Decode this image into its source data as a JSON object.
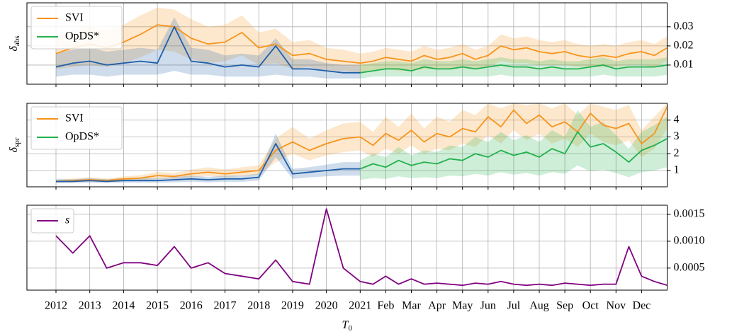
{
  "chart_data": [
    {
      "type": "line",
      "ylabel": "δ",
      "ylabel_sub": "abs",
      "ylim": [
        0,
        0.0425
      ],
      "yticks": [
        0.01,
        0.02,
        0.03
      ],
      "grid": true,
      "legend": "upper left",
      "series": [
        {
          "name": "SVI",
          "color": "#f7941d",
          "values": [
            0.016,
            0.019,
            0.021,
            0.019,
            0.022,
            0.026,
            0.031,
            0.03,
            0.024,
            0.021,
            0.022,
            0.027,
            0.019,
            0.021,
            0.015,
            0.016,
            0.013,
            0.012,
            0.011,
            0.012,
            0.014,
            0.013,
            0.012,
            0.015,
            0.013,
            0.014,
            0.016,
            0.013,
            0.015,
            0.02,
            0.018,
            0.019,
            0.017,
            0.016,
            0.017,
            0.015,
            0.014,
            0.015,
            0.014,
            0.016,
            0.017,
            0.015,
            0.019
          ],
          "lower": [
            0.008,
            0.009,
            0.01,
            0.009,
            0.011,
            0.014,
            0.018,
            0.017,
            0.013,
            0.011,
            0.012,
            0.015,
            0.01,
            0.011,
            0.008,
            0.009,
            0.007,
            0.007,
            0.006,
            0.007,
            0.008,
            0.007,
            0.007,
            0.008,
            0.008,
            0.008,
            0.009,
            0.008,
            0.009,
            0.012,
            0.011,
            0.011,
            0.01,
            0.01,
            0.01,
            0.009,
            0.009,
            0.009,
            0.009,
            0.01,
            0.01,
            0.009,
            0.012
          ],
          "upper": [
            0.024,
            0.028,
            0.03,
            0.028,
            0.031,
            0.036,
            0.04,
            0.039,
            0.034,
            0.03,
            0.031,
            0.036,
            0.027,
            0.029,
            0.022,
            0.023,
            0.019,
            0.018,
            0.016,
            0.017,
            0.019,
            0.018,
            0.017,
            0.02,
            0.018,
            0.019,
            0.021,
            0.018,
            0.02,
            0.026,
            0.024,
            0.025,
            0.023,
            0.022,
            0.023,
            0.021,
            0.02,
            0.021,
            0.02,
            0.022,
            0.023,
            0.021,
            0.025
          ]
        },
        {
          "name": "OpDS*",
          "color": "#22b14c",
          "values": [
            null,
            null,
            null,
            null,
            null,
            null,
            null,
            null,
            null,
            null,
            null,
            null,
            null,
            null,
            null,
            null,
            null,
            null,
            0.006,
            0.007,
            0.008,
            0.008,
            0.007,
            0.009,
            0.008,
            0.008,
            0.009,
            0.008,
            0.009,
            0.01,
            0.009,
            0.009,
            0.008,
            0.009,
            0.008,
            0.008,
            0.009,
            0.01,
            0.008,
            0.009,
            0.009,
            0.009,
            0.01
          ],
          "lower": [
            null,
            null,
            null,
            null,
            null,
            null,
            null,
            null,
            null,
            null,
            null,
            null,
            null,
            null,
            null,
            null,
            null,
            null,
            0.003,
            0.004,
            0.004,
            0.004,
            0.004,
            0.004,
            0.004,
            0.004,
            0.004,
            0.004,
            0.004,
            0.005,
            0.004,
            0.004,
            0.004,
            0.004,
            0.004,
            0.004,
            0.004,
            0.005,
            0.004,
            0.004,
            0.004,
            0.004,
            0.005
          ],
          "upper": [
            null,
            null,
            null,
            null,
            null,
            null,
            null,
            null,
            null,
            null,
            null,
            null,
            null,
            null,
            null,
            null,
            null,
            null,
            0.01,
            0.011,
            0.012,
            0.012,
            0.011,
            0.013,
            0.012,
            0.012,
            0.013,
            0.012,
            0.013,
            0.014,
            0.013,
            0.013,
            0.012,
            0.013,
            0.012,
            0.012,
            0.013,
            0.014,
            0.012,
            0.013,
            0.013,
            0.013,
            0.014
          ]
        },
        {
          "color": "#1f5fa8",
          "values": [
            0.009,
            0.011,
            0.012,
            0.01,
            0.011,
            0.012,
            0.011,
            0.03,
            0.012,
            0.011,
            0.009,
            0.01,
            0.009,
            0.02,
            0.008,
            0.008,
            0.007,
            0.006,
            0.006,
            null,
            null,
            null,
            null,
            null,
            null,
            null,
            null,
            null,
            null,
            null,
            null,
            null,
            null,
            null,
            null,
            null,
            null,
            null,
            null,
            null,
            null,
            null,
            null
          ],
          "lower": [
            0.004,
            0.005,
            0.005,
            0.004,
            0.005,
            0.005,
            0.005,
            0.007,
            0.005,
            0.005,
            0.004,
            0.004,
            0.004,
            0.005,
            0.004,
            0.004,
            0.003,
            0.003,
            0.003,
            null,
            null,
            null,
            null,
            null,
            null,
            null,
            null,
            null,
            null,
            null,
            null,
            null,
            null,
            null,
            null,
            null,
            null,
            null,
            null,
            null,
            null,
            null,
            null
          ],
          "upper": [
            0.016,
            0.018,
            0.019,
            0.017,
            0.018,
            0.019,
            0.018,
            0.035,
            0.019,
            0.018,
            0.015,
            0.016,
            0.015,
            0.024,
            0.013,
            0.013,
            0.011,
            0.01,
            0.01,
            null,
            null,
            null,
            null,
            null,
            null,
            null,
            null,
            null,
            null,
            null,
            null,
            null,
            null,
            null,
            null,
            null,
            null,
            null,
            null,
            null,
            null,
            null,
            null
          ]
        }
      ]
    },
    {
      "type": "line",
      "ylabel": "δ",
      "ylabel_sub": "spr",
      "ylim": [
        0.03,
        5.0
      ],
      "yticks": [
        1,
        2,
        3,
        4
      ],
      "grid": true,
      "legend": "upper left",
      "series": [
        {
          "name": "SVI",
          "color": "#f7941d",
          "values": [
            0.35,
            0.4,
            0.45,
            0.4,
            0.5,
            0.55,
            0.7,
            0.65,
            0.8,
            0.9,
            0.8,
            0.9,
            1.0,
            2.2,
            2.7,
            2.2,
            2.6,
            2.9,
            3.0,
            2.5,
            3.2,
            2.8,
            3.4,
            2.7,
            3.2,
            3.0,
            3.5,
            3.3,
            4.2,
            3.6,
            4.6,
            3.8,
            4.3,
            3.6,
            3.9,
            3.3,
            4.4,
            3.7,
            3.5,
            3.8,
            2.6,
            3.2,
            4.8
          ],
          "lower": [
            0.28,
            0.3,
            0.34,
            0.3,
            0.38,
            0.42,
            0.5,
            0.5,
            0.6,
            0.68,
            0.6,
            0.68,
            0.75,
            1.5,
            2.0,
            1.6,
            1.9,
            2.1,
            2.2,
            1.8,
            2.3,
            2.0,
            2.5,
            2.0,
            2.3,
            2.2,
            2.6,
            2.4,
            3.1,
            2.6,
            3.4,
            2.8,
            3.2,
            2.6,
            2.9,
            2.4,
            3.2,
            2.7,
            2.5,
            2.8,
            1.8,
            2.3,
            3.5
          ],
          "upper": [
            0.45,
            0.52,
            0.6,
            0.52,
            0.65,
            0.72,
            0.92,
            0.85,
            1.05,
            1.2,
            1.05,
            1.2,
            1.3,
            2.9,
            3.6,
            2.9,
            3.4,
            3.8,
            3.9,
            3.3,
            4.2,
            3.6,
            4.4,
            3.5,
            4.2,
            3.9,
            4.6,
            4.3,
            5.0,
            4.7,
            5.0,
            4.9,
            5.0,
            4.7,
            5.0,
            4.3,
            5.0,
            4.8,
            4.6,
            4.9,
            3.4,
            4.2,
            5.0
          ]
        },
        {
          "name": "OpDS*",
          "color": "#22b14c",
          "values": [
            null,
            null,
            null,
            null,
            null,
            null,
            null,
            null,
            null,
            null,
            null,
            null,
            null,
            null,
            null,
            null,
            null,
            null,
            1.1,
            1.4,
            1.2,
            1.6,
            1.3,
            1.5,
            1.4,
            1.7,
            1.6,
            2.0,
            1.8,
            2.2,
            1.9,
            2.1,
            1.8,
            2.3,
            2.0,
            3.3,
            2.4,
            2.6,
            2.1,
            1.5,
            2.2,
            2.5,
            2.9
          ],
          "lower": [
            null,
            null,
            null,
            null,
            null,
            null,
            null,
            null,
            null,
            null,
            null,
            null,
            null,
            null,
            null,
            null,
            null,
            null,
            0.45,
            0.55,
            0.5,
            0.65,
            0.55,
            0.6,
            0.55,
            0.7,
            0.65,
            0.8,
            0.7,
            0.9,
            0.75,
            0.85,
            0.7,
            0.9,
            0.8,
            1.3,
            0.95,
            1.05,
            0.85,
            0.6,
            0.9,
            1.0,
            1.2
          ],
          "upper": [
            null,
            null,
            null,
            null,
            null,
            null,
            null,
            null,
            null,
            null,
            null,
            null,
            null,
            null,
            null,
            null,
            null,
            null,
            1.6,
            2.0,
            1.8,
            2.4,
            1.9,
            2.2,
            2.1,
            2.5,
            2.4,
            3.0,
            2.7,
            3.3,
            2.8,
            3.1,
            2.7,
            3.4,
            3.0,
            4.6,
            3.6,
            3.9,
            3.1,
            2.3,
            3.3,
            3.7,
            4.2
          ]
        },
        {
          "color": "#1f5fa8",
          "values": [
            0.35,
            0.35,
            0.4,
            0.35,
            0.4,
            0.4,
            0.4,
            0.45,
            0.5,
            0.45,
            0.5,
            0.5,
            0.6,
            2.6,
            0.8,
            0.9,
            1.0,
            1.1,
            1.1,
            null,
            null,
            null,
            null,
            null,
            null,
            null,
            null,
            null,
            null,
            null,
            null,
            null,
            null,
            null,
            null,
            null,
            null,
            null,
            null,
            null,
            null,
            null,
            null
          ],
          "lower": [
            0.25,
            0.25,
            0.28,
            0.25,
            0.28,
            0.28,
            0.28,
            0.3,
            0.33,
            0.3,
            0.33,
            0.33,
            0.4,
            1.8,
            0.5,
            0.6,
            0.65,
            0.7,
            0.7,
            null,
            null,
            null,
            null,
            null,
            null,
            null,
            null,
            null,
            null,
            null,
            null,
            null,
            null,
            null,
            null,
            null,
            null,
            null,
            null,
            null,
            null,
            null,
            null
          ],
          "upper": [
            0.48,
            0.48,
            0.55,
            0.48,
            0.55,
            0.55,
            0.55,
            0.62,
            0.7,
            0.62,
            0.7,
            0.7,
            0.82,
            3.2,
            1.1,
            1.2,
            1.35,
            1.5,
            1.5,
            null,
            null,
            null,
            null,
            null,
            null,
            null,
            null,
            null,
            null,
            null,
            null,
            null,
            null,
            null,
            null,
            null,
            null,
            null,
            null,
            null,
            null,
            null,
            null
          ]
        }
      ]
    },
    {
      "type": "line",
      "xlabel": "T",
      "xlabel_sub": "0",
      "x": [
        0,
        0.5,
        1,
        1.5,
        2,
        2.5,
        3,
        3.5,
        4,
        4.5,
        5,
        5.5,
        6,
        6.5,
        7,
        7.5,
        8,
        8.5,
        9,
        9.5,
        10,
        10.5,
        11,
        11.5,
        12,
        12.5,
        13,
        13.5,
        14,
        14.5,
        15,
        15.5,
        16,
        16.5,
        17,
        17.5,
        18,
        18.5,
        19,
        19.5,
        20,
        20.5,
        21
      ],
      "xlim": [
        -0.86,
        21
      ],
      "xticks": [
        {
          "value": 0,
          "label": "2012"
        },
        {
          "value": 1,
          "label": "2013"
        },
        {
          "value": 2,
          "label": "2014"
        },
        {
          "value": 3,
          "label": "2015"
        },
        {
          "value": 4,
          "label": "2016"
        },
        {
          "value": 5,
          "label": "2017"
        },
        {
          "value": 6,
          "label": "2018"
        },
        {
          "value": 7,
          "label": "2019"
        },
        {
          "value": 8,
          "label": "2020"
        },
        {
          "value": 9,
          "label": "2021"
        },
        {
          "value": 10,
          "label": "Feb"
        },
        {
          "value": 11,
          "label": "Mar"
        },
        {
          "value": 12,
          "label": "Apr"
        },
        {
          "value": 13,
          "label": "May"
        },
        {
          "value": 14,
          "label": "Jun"
        },
        {
          "value": 15,
          "label": "Jul"
        },
        {
          "value": 16,
          "label": "Aug"
        },
        {
          "value": 17,
          "label": "Sep"
        },
        {
          "value": 18,
          "label": "Oct"
        },
        {
          "value": 19,
          "label": "Nov"
        },
        {
          "value": 20,
          "label": "Dec"
        }
      ],
      "ylim": [
        9e-05,
        0.00167
      ],
      "yticks": [
        0.0005,
        {
          "value": 0.001,
          "label": "0.0010"
        },
        0.0015
      ],
      "grid": true,
      "legend": "upper left",
      "series": [
        {
          "name": "s",
          "color": "#800080",
          "values": [
            0.0011,
            0.00078,
            0.0011,
            0.0005,
            0.0006,
            0.0006,
            0.00055,
            0.0009,
            0.0005,
            0.0006,
            0.0004,
            0.00035,
            0.0003,
            0.00065,
            0.00025,
            0.0002,
            0.0016,
            0.0005,
            0.00025,
            0.0002,
            0.00035,
            0.0002,
            0.0003,
            0.0002,
            0.00022,
            0.0002,
            0.00018,
            0.00022,
            0.0002,
            0.00025,
            0.0002,
            0.00018,
            0.0002,
            0.00018,
            0.00022,
            0.0002,
            0.00018,
            0.0002,
            0.0002,
            0.0009,
            0.00035,
            0.00025,
            0.00018
          ]
        }
      ]
    }
  ]
}
